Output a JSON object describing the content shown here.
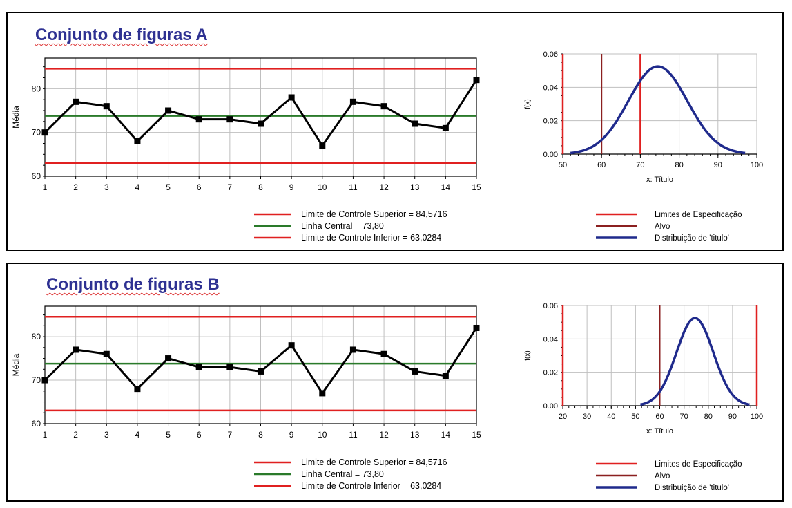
{
  "colors": {
    "title": "#2e3192",
    "limit": "#e02020",
    "center": "#2a7a2a",
    "data_line": "#000000",
    "spec": "#e02020",
    "target": "#8b2020",
    "distribution": "#1f2a8c",
    "grid": "#bfbfbf"
  },
  "panels": [
    {
      "title": "Conjunto de figuras A",
      "legend_left": [
        {
          "label": "Limite de Controle Superior = 84,5716",
          "color": "#e02020"
        },
        {
          "label": "Linha Central = 73,80",
          "color": "#2a7a2a"
        },
        {
          "label": "Limite de Controle Inferior   = 63,0284",
          "color": "#e02020"
        }
      ],
      "legend_right": [
        {
          "label": "Limites de Especificação",
          "color": "#e02020"
        },
        {
          "label": "Alvo",
          "color": "#8b2020"
        },
        {
          "label": "Distribuição de 'titulo'",
          "color": "#1f2a8c"
        }
      ]
    },
    {
      "title": "Conjunto de figuras B",
      "legend_left": [
        {
          "label": "Limite de Controle Superior = 84,5716",
          "color": "#e02020"
        },
        {
          "label": "Linha Central = 73,80",
          "color": "#2a7a2a"
        },
        {
          "label": "Limite de Controle Inferior   = 63,0284",
          "color": "#e02020"
        }
      ],
      "legend_right": [
        {
          "label": "Limites de Especificação",
          "color": "#e02020"
        },
        {
          "label": "Alvo",
          "color": "#8b2020"
        },
        {
          "label": "Distribuição de 'titulo'",
          "color": "#1f2a8c"
        }
      ]
    }
  ],
  "chart_data": [
    {
      "id": "A-control",
      "type": "line",
      "ylabel": "Média",
      "x": [
        1,
        2,
        3,
        4,
        5,
        6,
        7,
        8,
        9,
        10,
        11,
        12,
        13,
        14,
        15
      ],
      "series": [
        {
          "values": [
            70,
            77,
            76,
            68,
            75,
            73,
            73,
            72,
            78,
            67,
            77,
            76,
            72,
            71,
            82
          ]
        }
      ],
      "reference_lines": {
        "ucl": 84.5716,
        "center": 73.8,
        "lcl": 63.0284
      },
      "xlim": [
        1,
        15
      ],
      "ylim": [
        60,
        87
      ],
      "x_ticks": [
        1,
        2,
        3,
        4,
        5,
        6,
        7,
        8,
        9,
        10,
        11,
        12,
        13,
        14,
        15
      ],
      "y_ticks": [
        60,
        70,
        80
      ],
      "grid": true
    },
    {
      "id": "A-distribution",
      "type": "line",
      "xlabel": "x:  Título",
      "ylabel": "f(x)",
      "xlim": [
        50,
        100
      ],
      "ylim": [
        0,
        0.06
      ],
      "x_ticks": [
        50,
        60,
        70,
        80,
        90,
        100
      ],
      "y_ticks": [
        "0.00",
        "0.02",
        "0.04",
        "0.06"
      ],
      "spec_limits": [
        50,
        70
      ],
      "target": 60,
      "distribution": {
        "mean": 74.5,
        "sd": 7.6,
        "x_range": [
          52,
          97
        ]
      },
      "grid": true
    },
    {
      "id": "B-control",
      "type": "line",
      "ylabel": "Média",
      "x": [
        1,
        2,
        3,
        4,
        5,
        6,
        7,
        8,
        9,
        10,
        11,
        12,
        13,
        14,
        15
      ],
      "series": [
        {
          "values": [
            70,
            77,
            76,
            68,
            75,
            73,
            73,
            72,
            78,
            67,
            77,
            76,
            72,
            71,
            82
          ]
        }
      ],
      "reference_lines": {
        "ucl": 84.5716,
        "center": 73.8,
        "lcl": 63.0284
      },
      "xlim": [
        1,
        15
      ],
      "ylim": [
        60,
        87
      ],
      "x_ticks": [
        1,
        2,
        3,
        4,
        5,
        6,
        7,
        8,
        9,
        10,
        11,
        12,
        13,
        14,
        15
      ],
      "y_ticks": [
        60,
        70,
        80
      ],
      "grid": true
    },
    {
      "id": "B-distribution",
      "type": "line",
      "xlabel": "x:  Título",
      "ylabel": "f(x)",
      "xlim": [
        20,
        100
      ],
      "ylim": [
        0,
        0.06
      ],
      "x_ticks": [
        20,
        30,
        40,
        50,
        60,
        70,
        80,
        90,
        100
      ],
      "y_ticks": [
        "0.00",
        "0.02",
        "0.04",
        "0.06"
      ],
      "spec_limits": [
        20,
        100
      ],
      "target": 60,
      "distribution": {
        "mean": 74.5,
        "sd": 7.6,
        "x_range": [
          52,
          97
        ]
      },
      "grid": true
    }
  ]
}
